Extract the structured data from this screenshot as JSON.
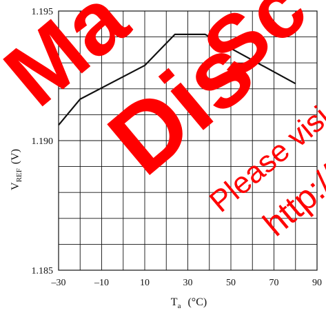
{
  "chart_data": {
    "type": "line",
    "xlabel": {
      "main": "T",
      "sub": "a",
      "unit": "(°C)"
    },
    "ylabel": {
      "main": "V",
      "sub": "REF",
      "unit": "(V)"
    },
    "xlim": [
      -30,
      90
    ],
    "ylim": [
      1.185,
      1.195
    ],
    "x_ticks": [
      -30,
      -10,
      10,
      30,
      50,
      70,
      90
    ],
    "x_tick_labels": [
      "–30",
      "–10",
      "10",
      "30",
      "50",
      "70",
      "90"
    ],
    "y_ticks": [
      1.185,
      1.19,
      1.195
    ],
    "y_tick_labels": [
      "1.185",
      "1.190",
      "1.195"
    ],
    "grid": true,
    "x_grid_step": 10,
    "y_grid_step": 0.001,
    "series": [
      {
        "x": [
          -30,
          -20,
          10,
          24,
          38,
          80
        ],
        "y": [
          1.1906,
          1.1916,
          1.1929,
          1.1941,
          1.1941,
          1.1922
        ],
        "color": "#111111"
      }
    ]
  },
  "watermark": {
    "color": "#ff0000",
    "texts": [
      "Ma",
      "Dis",
      "Sc",
      "Please visi",
      "http://"
    ]
  }
}
